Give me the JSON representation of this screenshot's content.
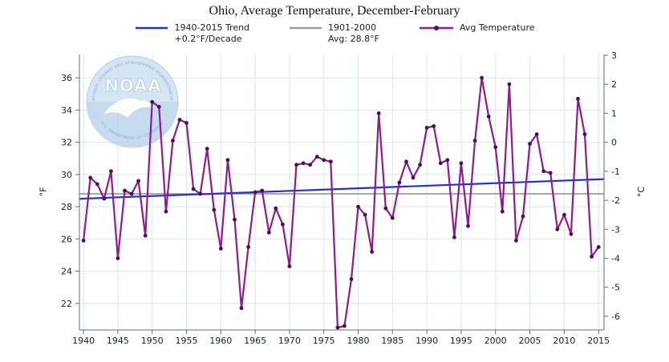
{
  "title": "Ohio, Average Temperature, December-February",
  "legend": {
    "items": [
      {
        "label": "1940-2015 Trend",
        "sublabel": "+0.2°F/Decade",
        "color": "#2134c6"
      },
      {
        "label": "1901-2000",
        "sublabel": "Avg: 28.8°F",
        "color": "#9b9b9b"
      },
      {
        "label": "Avg Temperature",
        "sublabel": "",
        "color": "#8d1c8d"
      }
    ]
  },
  "colors": {
    "series": "#8d1c8d",
    "marker": "#471158",
    "trend": "#2134c6",
    "reference": "#9b9b9b",
    "grid": "#dbe4ee",
    "axis": "#5f6e7e",
    "tick_label": "#15202b"
  },
  "axes": {
    "ylabel_left": "°F",
    "ylabel_right": "°C",
    "x_ticks": [
      1940,
      1945,
      1950,
      1955,
      1960,
      1965,
      1970,
      1975,
      1980,
      1985,
      1990,
      1995,
      2000,
      2005,
      2010,
      2015
    ],
    "y_ticks_f": [
      22,
      24,
      26,
      28,
      30,
      32,
      34,
      36
    ],
    "y_ticks_c": [
      -6,
      -5,
      -4,
      -3,
      -2,
      -1,
      0,
      1,
      2,
      3
    ]
  },
  "watermark": {
    "org": "NOAA",
    "ring_top": "NATIONAL OCEANIC AND ATMOSPHERIC ADMINISTRATION",
    "ring_bottom": "U.S. DEPARTMENT OF COMMERCE"
  },
  "chart_data": {
    "type": "line",
    "title": "Ohio, Average Temperature, December-February",
    "series_name": "Avg Temperature",
    "ylabel": "°F",
    "ylabel_secondary": "°C",
    "x_range": [
      1940,
      2015
    ],
    "y_range_f": [
      20.35,
      37.45
    ],
    "years": [
      1940,
      1941,
      1942,
      1943,
      1944,
      1945,
      1946,
      1947,
      1948,
      1949,
      1950,
      1951,
      1952,
      1953,
      1954,
      1955,
      1956,
      1957,
      1958,
      1959,
      1960,
      1961,
      1962,
      1963,
      1964,
      1965,
      1966,
      1967,
      1968,
      1969,
      1970,
      1971,
      1972,
      1973,
      1974,
      1975,
      1976,
      1977,
      1978,
      1979,
      1980,
      1981,
      1982,
      1983,
      1984,
      1985,
      1986,
      1987,
      1988,
      1989,
      1990,
      1991,
      1992,
      1993,
      1994,
      1995,
      1996,
      1997,
      1998,
      1999,
      2000,
      2001,
      2002,
      2003,
      2004,
      2005,
      2006,
      2007,
      2008,
      2009,
      2010,
      2011,
      2012,
      2013,
      2014,
      2015
    ],
    "values": [
      25.9,
      29.8,
      29.4,
      28.5,
      30.2,
      24.8,
      29.0,
      28.8,
      29.6,
      26.2,
      34.5,
      34.2,
      27.7,
      32.1,
      33.4,
      33.2,
      29.1,
      28.8,
      31.6,
      27.8,
      25.4,
      30.9,
      27.2,
      21.7,
      25.5,
      28.9,
      29.0,
      26.4,
      27.9,
      26.9,
      24.3,
      30.6,
      30.7,
      30.6,
      31.1,
      30.9,
      30.8,
      20.5,
      20.6,
      23.5,
      28.0,
      27.5,
      25.2,
      33.8,
      27.9,
      27.3,
      29.5,
      30.8,
      29.8,
      30.6,
      32.9,
      33.0,
      30.7,
      30.9,
      26.1,
      30.7,
      26.8,
      32.1,
      36.0,
      33.6,
      31.7,
      27.7,
      35.6,
      25.9,
      27.4,
      31.9,
      32.5,
      30.2,
      30.1,
      26.6,
      27.5,
      26.3,
      34.7,
      32.5,
      24.9,
      25.5
    ],
    "trend": {
      "label": "1940-2015 Trend",
      "rate": "+0.2°F/Decade",
      "start_year": 1940,
      "end_year": 2015,
      "start_value": 28.5,
      "end_value": 29.7
    },
    "reference": {
      "label": "1901-2000 Avg",
      "value": 28.8
    }
  }
}
